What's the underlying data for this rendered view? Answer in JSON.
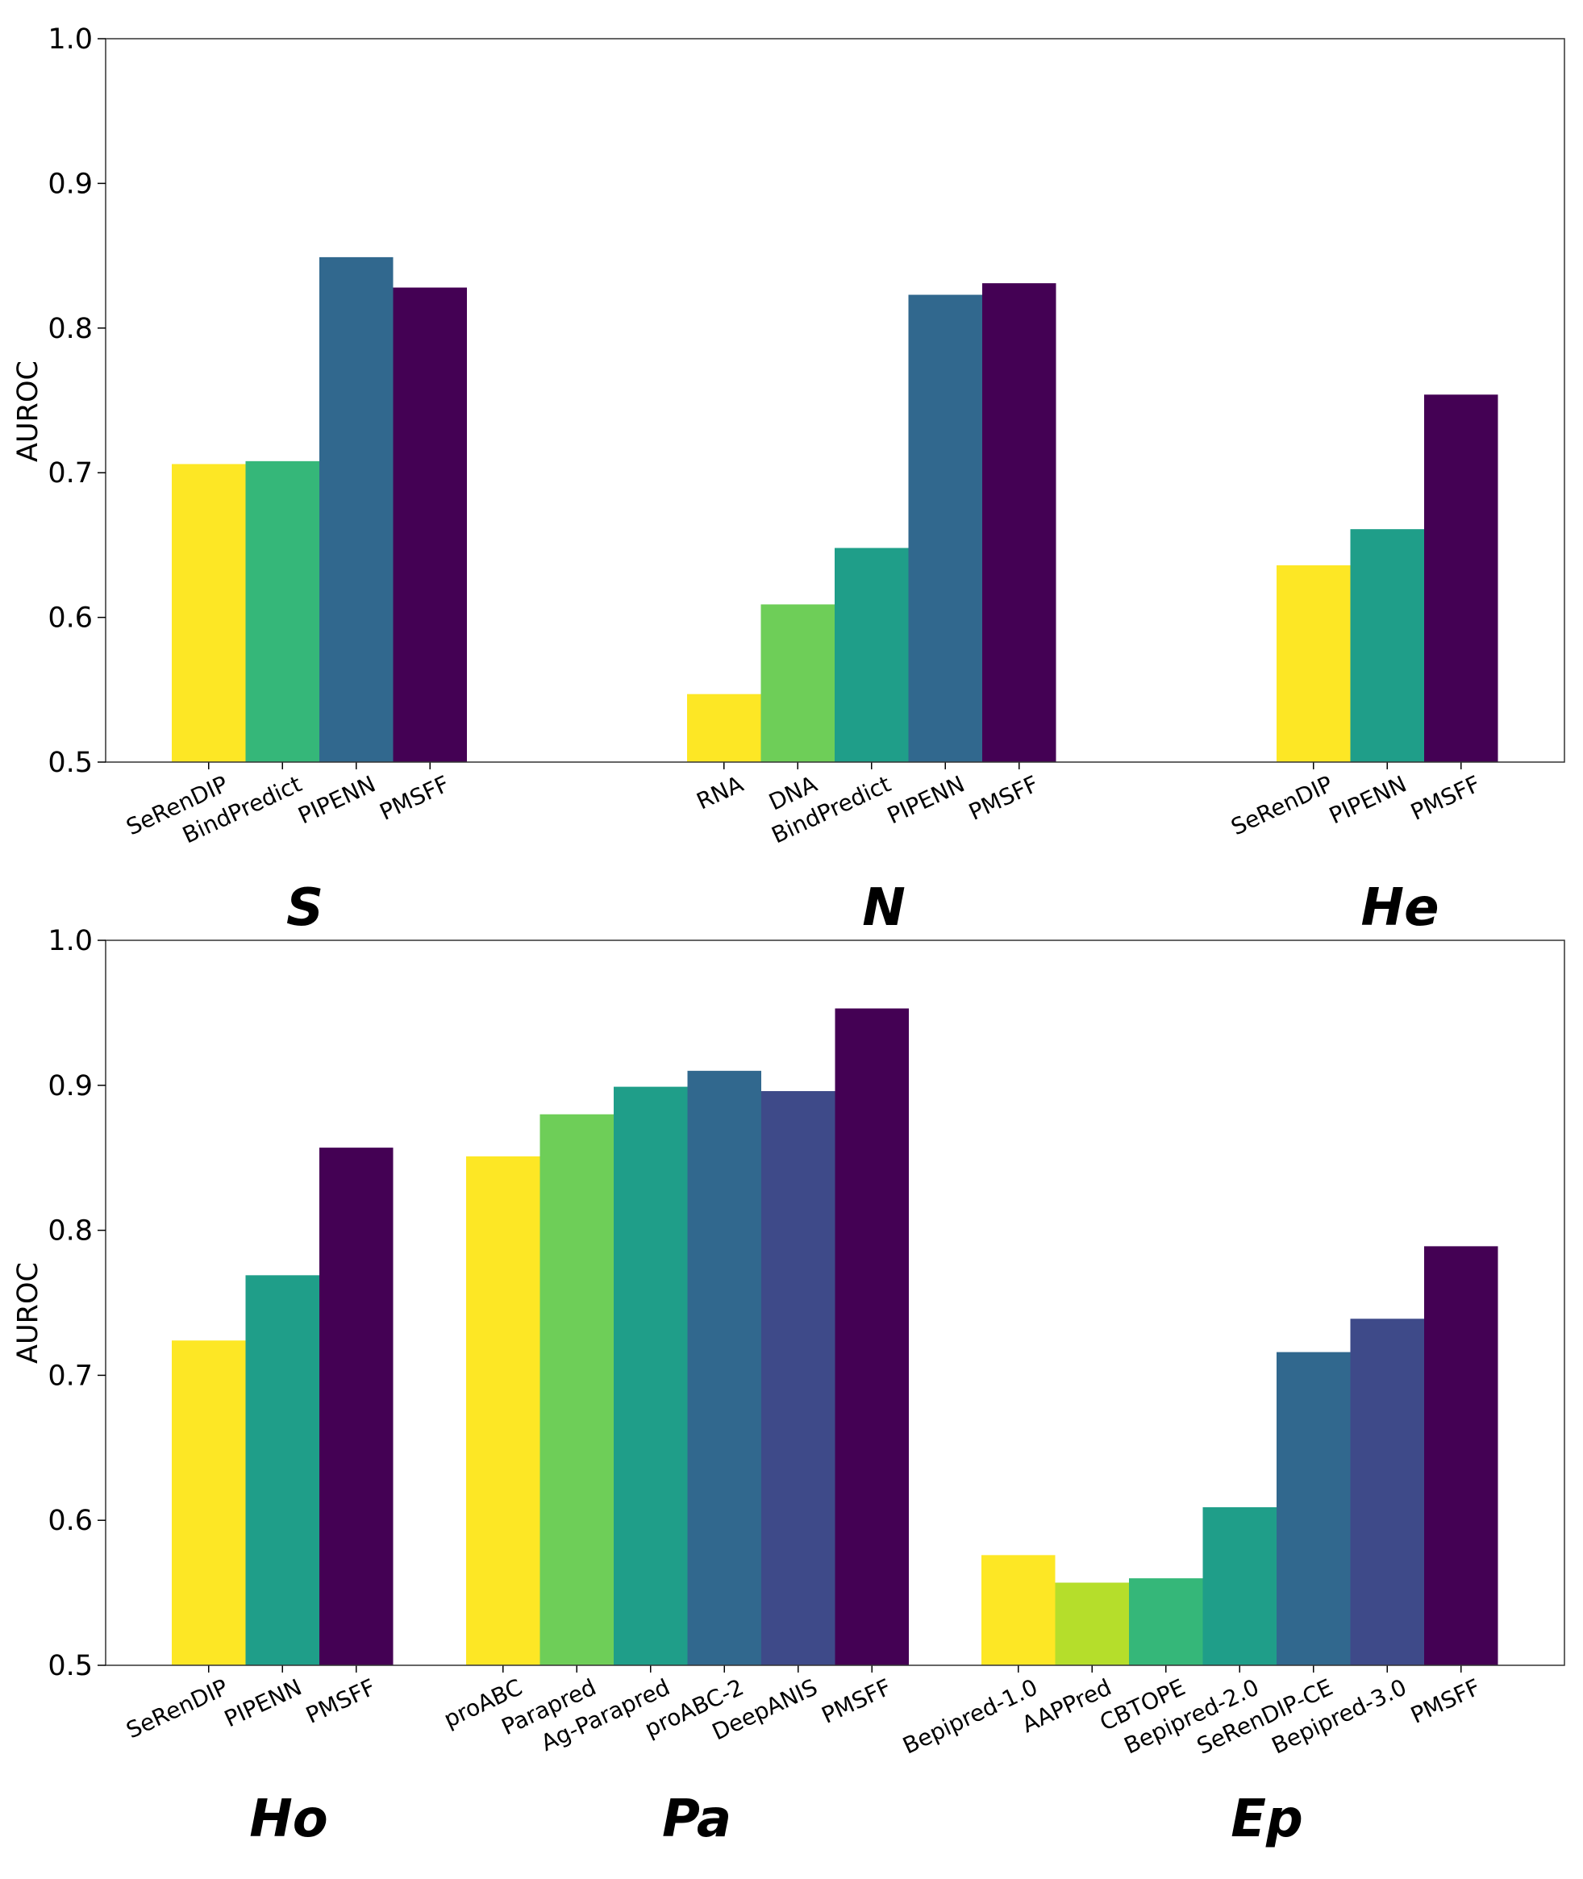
{
  "colors": {
    "yellow": "#fde725",
    "lightgreen": "#b5de2b",
    "green": "#6ece58",
    "emerald": "#35b779",
    "teal": "#1f9e89",
    "steelblue": "#31688e",
    "indigo": "#3e4a89",
    "purple": "#440154"
  },
  "chart_data": [
    {
      "type": "bar",
      "ylabel": "AUROC",
      "ylim": [
        0.5,
        1.0
      ],
      "yticks": [
        "0.5",
        "0.6",
        "0.7",
        "0.8",
        "0.9",
        "1.0"
      ],
      "groups": [
        {
          "label": "S",
          "bars": [
            {
              "name": "SeRenDIP",
              "value": 0.706,
              "color": "#fde725"
            },
            {
              "name": "BindPredict",
              "value": 0.708,
              "color": "#35b779"
            },
            {
              "name": "PIPENN",
              "value": 0.849,
              "color": "#31688e"
            },
            {
              "name": "PMSFF",
              "value": 0.828,
              "color": "#440154"
            }
          ]
        },
        {
          "label": "N",
          "bars": [
            {
              "name": "RNA",
              "value": 0.547,
              "color": "#fde725"
            },
            {
              "name": "DNA",
              "value": 0.609,
              "color": "#6ece58"
            },
            {
              "name": "BindPredict",
              "value": 0.648,
              "color": "#1f9e89"
            },
            {
              "name": "PIPENN",
              "value": 0.823,
              "color": "#31688e"
            },
            {
              "name": "PMSFF",
              "value": 0.831,
              "color": "#440154"
            }
          ]
        },
        {
          "label": "He",
          "bars": [
            {
              "name": "SeRenDIP",
              "value": 0.636,
              "color": "#fde725"
            },
            {
              "name": "PIPENN",
              "value": 0.661,
              "color": "#1f9e89"
            },
            {
              "name": "PMSFF",
              "value": 0.754,
              "color": "#440154"
            }
          ]
        }
      ]
    },
    {
      "type": "bar",
      "ylabel": "AUROC",
      "ylim": [
        0.5,
        1.0
      ],
      "yticks": [
        "0.5",
        "0.6",
        "0.7",
        "0.8",
        "0.9",
        "1.0"
      ],
      "groups": [
        {
          "label": "Ho",
          "bars": [
            {
              "name": "SeRenDIP",
              "value": 0.724,
              "color": "#fde725"
            },
            {
              "name": "PIPENN",
              "value": 0.769,
              "color": "#1f9e89"
            },
            {
              "name": "PMSFF",
              "value": 0.857,
              "color": "#440154"
            }
          ]
        },
        {
          "label": "Pa",
          "bars": [
            {
              "name": "proABC",
              "value": 0.851,
              "color": "#fde725"
            },
            {
              "name": "Parapred",
              "value": 0.88,
              "color": "#6ece58"
            },
            {
              "name": "Ag-Parapred",
              "value": 0.899,
              "color": "#1f9e89"
            },
            {
              "name": "proABC-2",
              "value": 0.91,
              "color": "#31688e"
            },
            {
              "name": "DeepANIS",
              "value": 0.896,
              "color": "#3e4a89"
            },
            {
              "name": "PMSFF",
              "value": 0.953,
              "color": "#440154"
            }
          ]
        },
        {
          "label": "Ep",
          "bars": [
            {
              "name": "Bepipred-1.0",
              "value": 0.576,
              "color": "#fde725"
            },
            {
              "name": "AAPPred",
              "value": 0.557,
              "color": "#b5de2b"
            },
            {
              "name": "CBTOPE",
              "value": 0.56,
              "color": "#35b779"
            },
            {
              "name": "Bepipred-2.0",
              "value": 0.609,
              "color": "#1f9e89"
            },
            {
              "name": "SeRenDIP-CE",
              "value": 0.716,
              "color": "#31688e"
            },
            {
              "name": "Bepipred-3.0",
              "value": 0.739,
              "color": "#3e4a89"
            },
            {
              "name": "PMSFF",
              "value": 0.789,
              "color": "#440154"
            }
          ]
        }
      ]
    }
  ]
}
